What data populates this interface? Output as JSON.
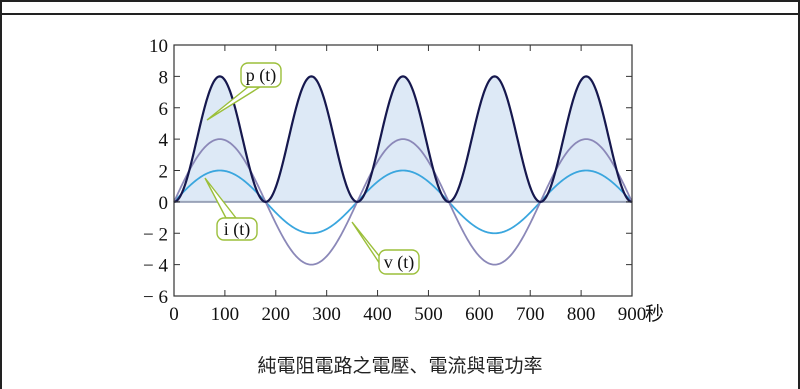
{
  "caption": "純電阻電路之電壓、電流與電功率",
  "chart_data": {
    "type": "line",
    "x": [
      0,
      90,
      180,
      270,
      360,
      450,
      540,
      630,
      720,
      810,
      900
    ],
    "xlim": [
      0,
      900
    ],
    "ylim": [
      -6,
      10
    ],
    "xticks": [
      "0",
      "100",
      "200",
      "300",
      "400",
      "500",
      "600",
      "700",
      "800",
      "900"
    ],
    "xtick_values": [
      0,
      100,
      200,
      300,
      400,
      500,
      600,
      700,
      800,
      900
    ],
    "xunit": "秒",
    "yticks": [
      "10",
      "8",
      "6",
      "4",
      "2",
      "0",
      "− 2",
      "− 4",
      "− 6"
    ],
    "ytick_values": [
      10,
      8,
      6,
      4,
      2,
      0,
      -2,
      -4,
      -6
    ],
    "period_s": 360,
    "grid": false,
    "series": [
      {
        "name": "p (t)",
        "color": "#16184e",
        "fill": "#dde9f6",
        "values": [
          0,
          8,
          0,
          8,
          0,
          8,
          0,
          8,
          0,
          8,
          0
        ]
      },
      {
        "name": "v (t)",
        "color": "#8b88b8",
        "values": [
          0,
          4,
          0,
          -4,
          0,
          4,
          0,
          -4,
          0,
          4,
          0
        ]
      },
      {
        "name": "i (t)",
        "color": "#3aa6de",
        "values": [
          0,
          2,
          0,
          -2,
          0,
          2,
          0,
          -2,
          0,
          2,
          0
        ]
      }
    ],
    "annotations": [
      {
        "label": "p (t)",
        "target_series": "p (t)"
      },
      {
        "label": "i (t)",
        "target_series": "i (t)"
      },
      {
        "label": "v (t)",
        "target_series": "v (t)"
      }
    ],
    "callout_border": "#9bbf3a"
  }
}
